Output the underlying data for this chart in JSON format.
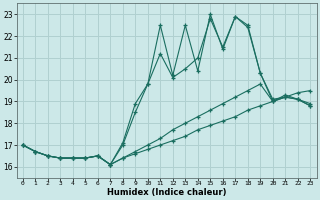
{
  "xlabel": "Humidex (Indice chaleur)",
  "xlim": [
    -0.5,
    23.5
  ],
  "ylim": [
    15.5,
    23.5
  ],
  "xticks": [
    0,
    1,
    2,
    3,
    4,
    5,
    6,
    7,
    8,
    9,
    10,
    11,
    12,
    13,
    14,
    15,
    16,
    17,
    18,
    19,
    20,
    21,
    22,
    23
  ],
  "yticks": [
    16,
    17,
    18,
    19,
    20,
    21,
    22,
    23
  ],
  "bg_color": "#cce8e8",
  "grid_color": "#b0d0d0",
  "line_color": "#1a6e60",
  "lines": [
    {
      "x": [
        0,
        1,
        2,
        3,
        4,
        5,
        6,
        7,
        8,
        9,
        10,
        11,
        12,
        13,
        14,
        15,
        16,
        17,
        18,
        19,
        20,
        21,
        22,
        23
      ],
      "y": [
        17.0,
        16.7,
        16.5,
        16.4,
        16.4,
        16.4,
        16.5,
        16.1,
        17.1,
        18.9,
        19.8,
        22.5,
        20.2,
        22.5,
        20.4,
        23.0,
        21.4,
        22.9,
        22.5,
        20.3,
        19.1,
        19.2,
        19.1,
        18.8
      ]
    },
    {
      "x": [
        0,
        1,
        2,
        3,
        4,
        5,
        6,
        7,
        8,
        9,
        10,
        11,
        12,
        13,
        14,
        15,
        16,
        17,
        18,
        19,
        20,
        21,
        22,
        23
      ],
      "y": [
        17.0,
        16.7,
        16.5,
        16.4,
        16.4,
        16.4,
        16.5,
        16.1,
        17.0,
        18.5,
        19.8,
        21.2,
        20.1,
        20.5,
        21.0,
        22.8,
        21.5,
        22.9,
        22.4,
        20.3,
        19.0,
        19.3,
        19.1,
        18.9
      ]
    },
    {
      "x": [
        0,
        1,
        2,
        3,
        4,
        5,
        6,
        7,
        8,
        9,
        10,
        11,
        12,
        13,
        14,
        15,
        16,
        17,
        18,
        19,
        20,
        21,
        22,
        23
      ],
      "y": [
        17.0,
        16.7,
        16.5,
        16.4,
        16.4,
        16.4,
        16.5,
        16.1,
        16.4,
        16.7,
        17.0,
        17.3,
        17.7,
        18.0,
        18.3,
        18.6,
        18.9,
        19.2,
        19.5,
        19.8,
        19.0,
        19.2,
        19.1,
        18.8
      ]
    },
    {
      "x": [
        0,
        1,
        2,
        3,
        4,
        5,
        6,
        7,
        8,
        9,
        10,
        11,
        12,
        13,
        14,
        15,
        16,
        17,
        18,
        19,
        20,
        21,
        22,
        23
      ],
      "y": [
        17.0,
        16.7,
        16.5,
        16.4,
        16.4,
        16.4,
        16.5,
        16.1,
        16.4,
        16.6,
        16.8,
        17.0,
        17.2,
        17.4,
        17.7,
        17.9,
        18.1,
        18.3,
        18.6,
        18.8,
        19.0,
        19.2,
        19.4,
        19.5
      ]
    }
  ]
}
